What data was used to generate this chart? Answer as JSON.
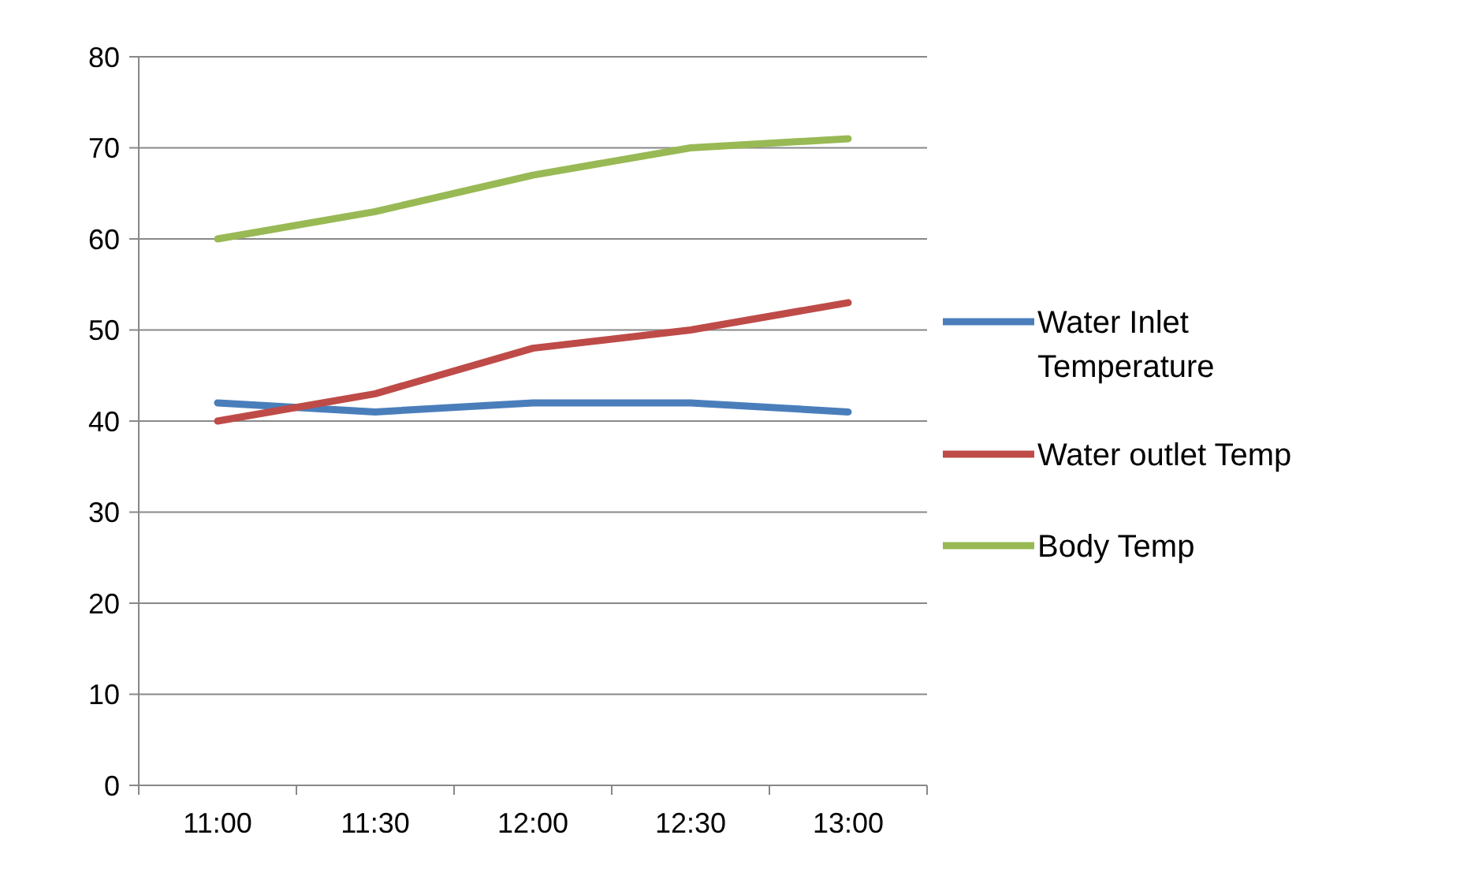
{
  "chart_data": {
    "type": "line",
    "categories": [
      "11:00",
      "11:30",
      "12:00",
      "12:30",
      "13:00"
    ],
    "series": [
      {
        "name": "Water Inlet Temperature",
        "color": "#4a7ebb",
        "values": [
          42,
          41,
          42,
          42,
          41
        ]
      },
      {
        "name": "Water outlet Temp",
        "color": "#be4b48",
        "values": [
          40,
          43,
          48,
          50,
          53
        ]
      },
      {
        "name": "Body Temp",
        "color": "#98b954",
        "values": [
          60,
          63,
          67,
          70,
          71
        ]
      }
    ],
    "ylim": [
      0,
      80
    ],
    "yticks": [
      0,
      10,
      20,
      30,
      40,
      50,
      60,
      70,
      80
    ],
    "grid": "y",
    "legend": "right",
    "marker": "none",
    "line_style": "solid"
  }
}
